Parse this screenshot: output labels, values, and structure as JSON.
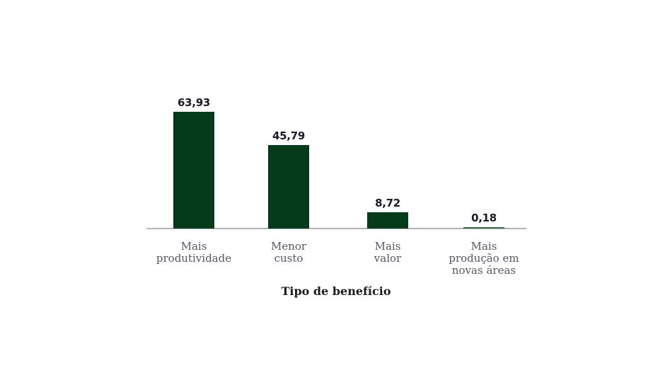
{
  "chart_data": {
    "type": "bar",
    "title": "",
    "xlabel": "Tipo de benefício",
    "ylabel": "",
    "categories": [
      "Mais produtividade",
      "Menor custo",
      "Mais valor",
      "Mais produção em novas áreas"
    ],
    "category_lines": [
      [
        "Mais",
        "produtividade"
      ],
      [
        "Menor",
        "custo"
      ],
      [
        "Mais",
        "valor"
      ],
      [
        "Mais",
        "produção em",
        "novas áreas"
      ]
    ],
    "values": [
      63.93,
      45.79,
      8.72,
      0.18
    ],
    "value_labels": [
      "63,93",
      "45,79",
      "8,72",
      "0,18"
    ],
    "ylim": [
      0,
      70
    ],
    "grid": false,
    "legend": null,
    "bar_color": "#053a1a"
  }
}
